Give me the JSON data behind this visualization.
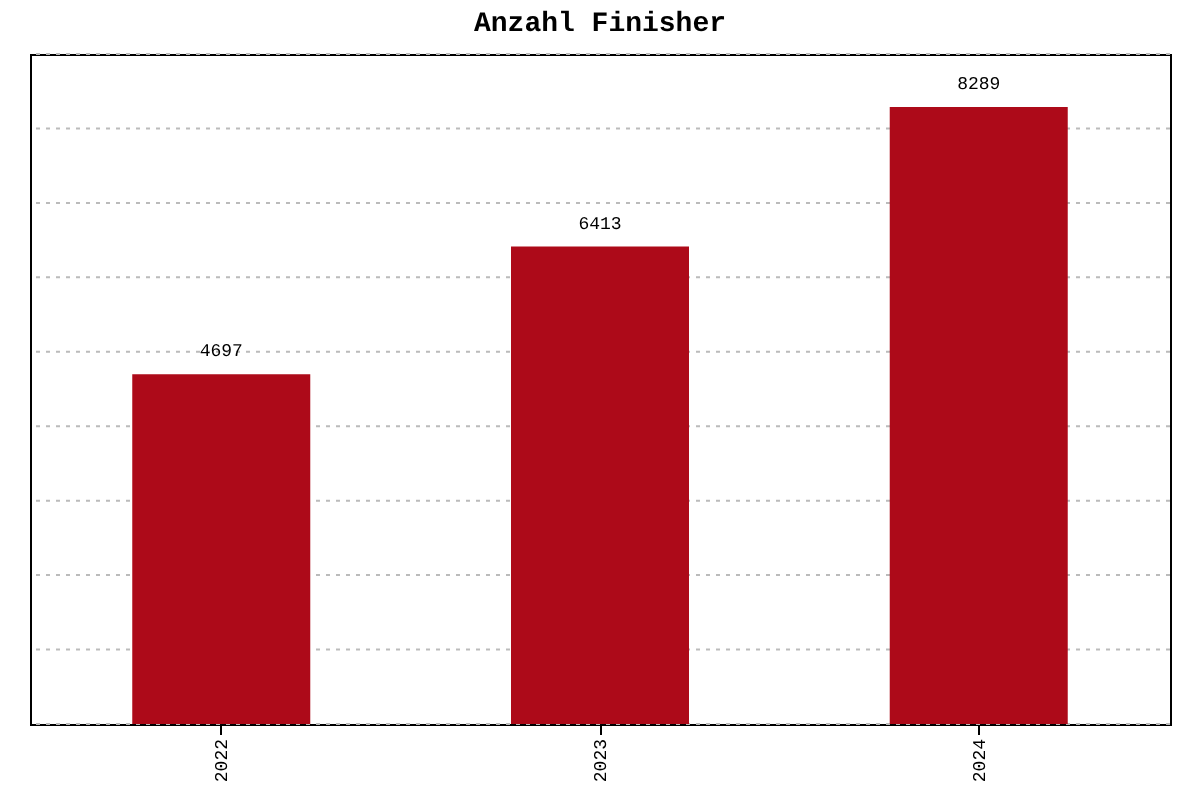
{
  "chart_data": {
    "type": "bar",
    "title": "Anzahl Finisher",
    "categories": [
      "2022",
      "2023",
      "2024"
    ],
    "values": [
      4697,
      6413,
      8289
    ],
    "color": "#ad0a19",
    "ylim": [
      0,
      9000
    ],
    "yticks": [
      {
        "value": 0,
        "label": null
      },
      {
        "value": 1000,
        "label": null
      },
      {
        "value": 2000,
        "label": null
      },
      {
        "value": 3000,
        "label": null
      },
      {
        "value": 4000,
        "label": null
      },
      {
        "value": 5000,
        "label": null
      },
      {
        "value": 6000,
        "label": null
      },
      {
        "value": 7000,
        "label": null
      },
      {
        "value": 8000,
        "label": null
      },
      {
        "value": 9000,
        "label": null
      }
    ],
    "grid": "y",
    "tick_labels": "x",
    "data_labels": true
  }
}
